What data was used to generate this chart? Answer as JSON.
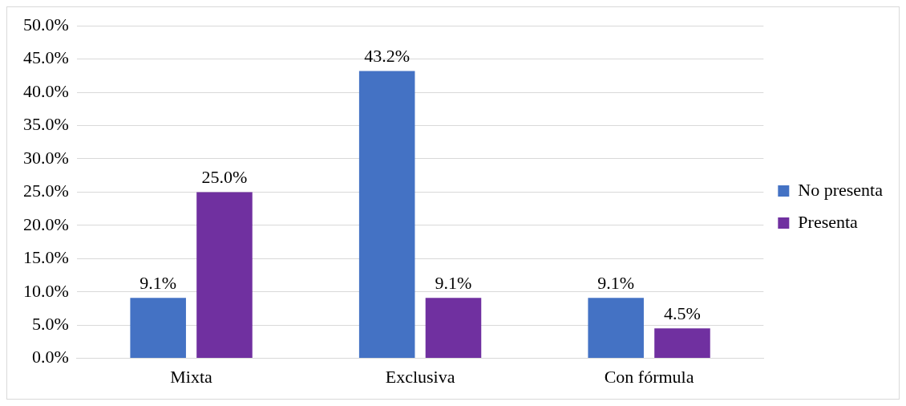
{
  "chart_data": {
    "type": "bar",
    "categories": [
      "Mixta",
      "Exclusiva",
      "Con fórmula"
    ],
    "series": [
      {
        "name": "No presenta",
        "color": "#4472c4",
        "values": [
          9.1,
          43.2,
          9.1
        ],
        "value_labels": [
          "9.1%",
          "43.2%",
          "9.1%"
        ]
      },
      {
        "name": "Presenta",
        "color": "#7030a0",
        "values": [
          25.0,
          9.1,
          4.5
        ],
        "value_labels": [
          "25.0%",
          "9.1%",
          "4.5%"
        ]
      }
    ],
    "ylim": [
      0,
      50
    ],
    "yticks": [
      {
        "value": 0,
        "label": "0.0%"
      },
      {
        "value": 5,
        "label": "5.0%"
      },
      {
        "value": 10,
        "label": "10.0%"
      },
      {
        "value": 15,
        "label": "15.0%"
      },
      {
        "value": 20,
        "label": "20.0%"
      },
      {
        "value": 25,
        "label": "25.0%"
      },
      {
        "value": 30,
        "label": "30.0%"
      },
      {
        "value": 35,
        "label": "35.0%"
      },
      {
        "value": 40,
        "label": "40.0%"
      },
      {
        "value": 45,
        "label": "45.0%"
      },
      {
        "value": 50,
        "label": "50.0%"
      }
    ],
    "grid": "y",
    "legend": "right"
  }
}
